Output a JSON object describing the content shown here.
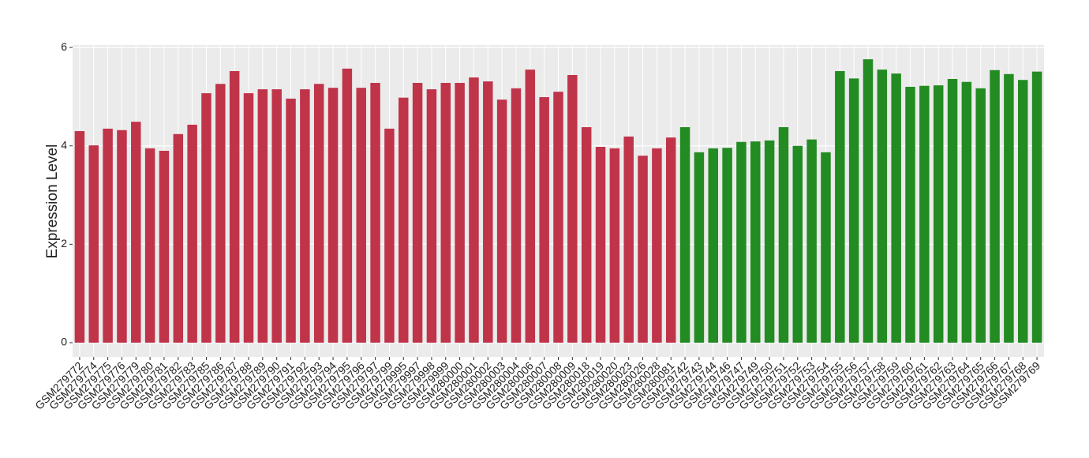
{
  "chart_data": {
    "type": "bar",
    "y_label": "Expression Level",
    "categories": [
      "GSM279772",
      "GSM279774",
      "GSM279775",
      "GSM279776",
      "GSM279779",
      "GSM279780",
      "GSM279781",
      "GSM279782",
      "GSM279783",
      "GSM279785",
      "GSM279786",
      "GSM279787",
      "GSM279788",
      "GSM279789",
      "GSM279790",
      "GSM279791",
      "GSM279792",
      "GSM279793",
      "GSM279794",
      "GSM279795",
      "GSM279796",
      "GSM279797",
      "GSM279799",
      "GSM279995",
      "GSM279997",
      "GSM279998",
      "GSM279999",
      "GSM280000",
      "GSM280001",
      "GSM280002",
      "GSM280003",
      "GSM280004",
      "GSM280006",
      "GSM280007",
      "GSM280008",
      "GSM280009",
      "GSM280018",
      "GSM280019",
      "GSM280020",
      "GSM280023",
      "GSM280026",
      "GSM280028",
      "GSM280081",
      "GSM279742",
      "GSM279743",
      "GSM279744",
      "GSM279746",
      "GSM279747",
      "GSM279749",
      "GSM279750",
      "GSM279751",
      "GSM279752",
      "GSM279753",
      "GSM279754",
      "GSM279755",
      "GSM279756",
      "GSM279757",
      "GSM279758",
      "GSM279759",
      "GSM279760",
      "GSM279761",
      "GSM279762",
      "GSM279763",
      "GSM279764",
      "GSM279765",
      "GSM279766",
      "GSM279767",
      "GSM279768",
      "GSM279769"
    ],
    "values": [
      4.3,
      4.01,
      4.35,
      4.32,
      4.49,
      3.95,
      3.9,
      4.24,
      4.43,
      5.07,
      5.26,
      5.52,
      5.07,
      5.15,
      5.15,
      4.96,
      5.15,
      5.26,
      5.18,
      5.57,
      5.18,
      5.28,
      4.35,
      4.98,
      5.28,
      5.15,
      5.28,
      5.28,
      5.39,
      5.31,
      4.94,
      5.17,
      5.55,
      4.99,
      5.1,
      5.44,
      4.38,
      3.98,
      3.95,
      4.19,
      3.8,
      3.95,
      4.17,
      4.38,
      3.87,
      3.95,
      3.96,
      4.08,
      4.09,
      4.11,
      4.38,
      4.0,
      4.13,
      3.87,
      5.52,
      5.37,
      5.76,
      5.55,
      5.47,
      5.2,
      5.22,
      5.23,
      5.36,
      5.3,
      5.17,
      5.54,
      5.46,
      5.34,
      5.51
    ],
    "colors": [
      "#c0344a",
      "#c0344a",
      "#c0344a",
      "#c0344a",
      "#c0344a",
      "#c0344a",
      "#c0344a",
      "#c0344a",
      "#c0344a",
      "#c0344a",
      "#c0344a",
      "#c0344a",
      "#c0344a",
      "#c0344a",
      "#c0344a",
      "#c0344a",
      "#c0344a",
      "#c0344a",
      "#c0344a",
      "#c0344a",
      "#c0344a",
      "#c0344a",
      "#c0344a",
      "#c0344a",
      "#c0344a",
      "#c0344a",
      "#c0344a",
      "#c0344a",
      "#c0344a",
      "#c0344a",
      "#c0344a",
      "#c0344a",
      "#c0344a",
      "#c0344a",
      "#c0344a",
      "#c0344a",
      "#c0344a",
      "#c0344a",
      "#c0344a",
      "#c0344a",
      "#c0344a",
      "#c0344a",
      "#c0344a",
      "#228b22",
      "#228b22",
      "#228b22",
      "#228b22",
      "#228b22",
      "#228b22",
      "#228b22",
      "#228b22",
      "#228b22",
      "#228b22",
      "#228b22",
      "#228b22",
      "#228b22",
      "#228b22",
      "#228b22",
      "#228b22",
      "#228b22",
      "#228b22",
      "#228b22",
      "#228b22",
      "#228b22",
      "#228b22",
      "#228b22",
      "#228b22",
      "#228b22",
      "#228b22"
    ],
    "ylim": [
      -0.29,
      6.05
    ],
    "yticks": [
      0,
      2,
      4,
      6
    ],
    "grid": true
  }
}
